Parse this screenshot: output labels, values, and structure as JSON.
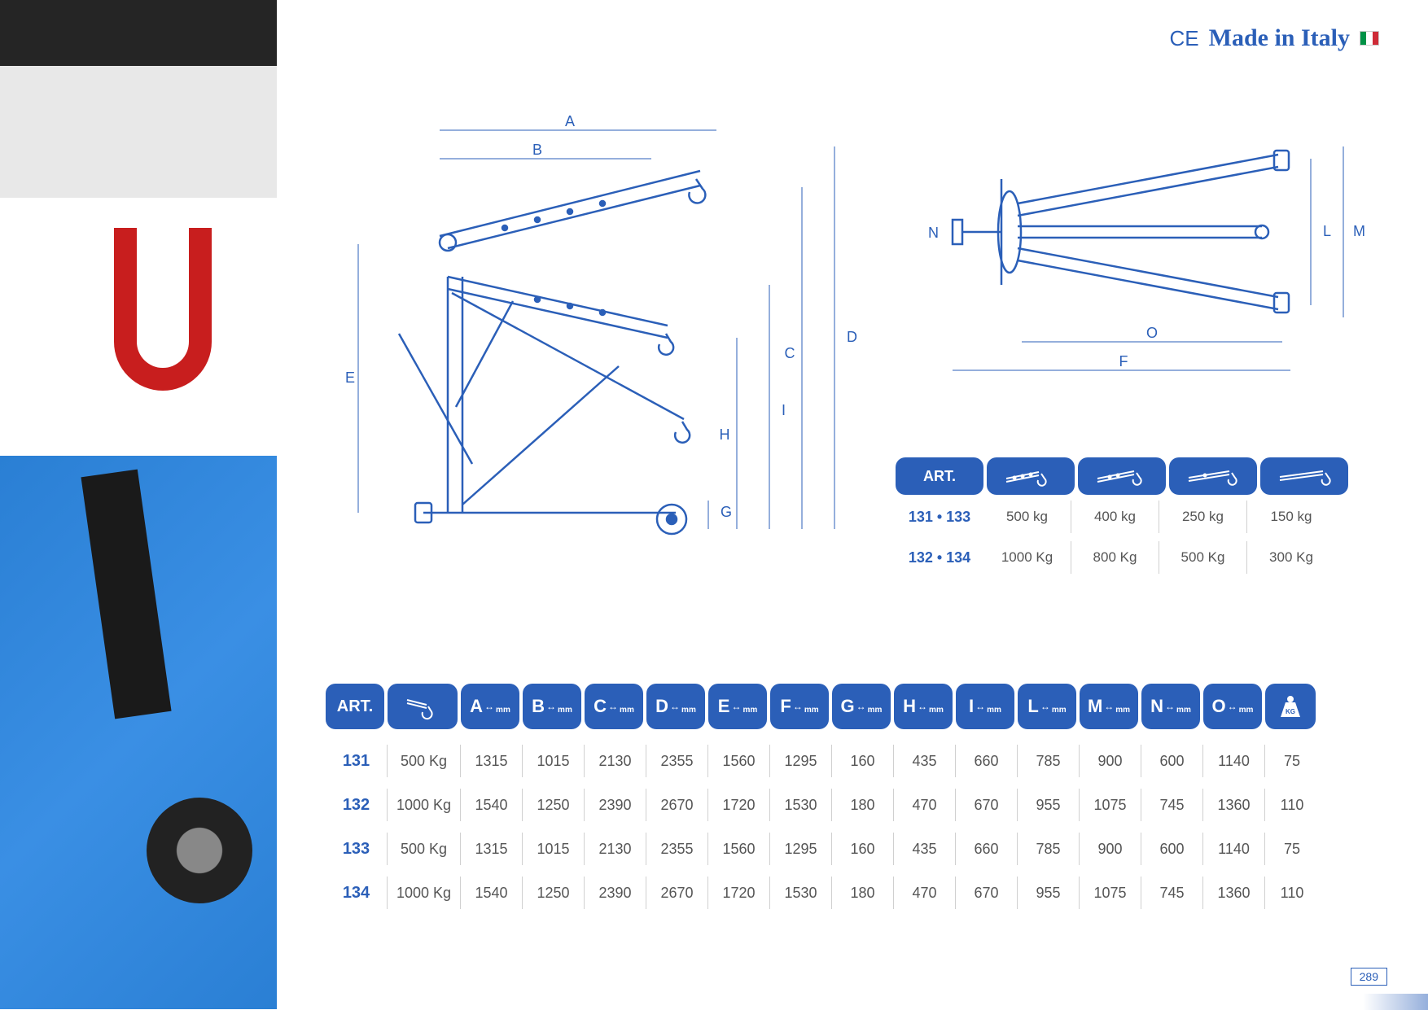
{
  "header": {
    "ce_mark": "CE",
    "made_in": "Made in Italy"
  },
  "diagram_side": {
    "labels": [
      "A",
      "B",
      "C",
      "D",
      "E",
      "G",
      "H",
      "I"
    ]
  },
  "diagram_top": {
    "labels": [
      "F",
      "L",
      "M",
      "N",
      "O"
    ]
  },
  "capacity_table": {
    "header": "ART.",
    "rows": [
      {
        "art": "131 • 133",
        "values": [
          "500 kg",
          "400 kg",
          "250 kg",
          "150 kg"
        ]
      },
      {
        "art": "132 • 134",
        "values": [
          "1000 Kg",
          "800 Kg",
          "500 Kg",
          "300 Kg"
        ]
      }
    ]
  },
  "main_table": {
    "header_art": "ART.",
    "dim_columns": [
      "A",
      "B",
      "C",
      "D",
      "E",
      "F",
      "G",
      "H",
      "I",
      "L",
      "M",
      "N",
      "O"
    ],
    "dim_unit": "mm",
    "rows": [
      {
        "art": "131",
        "cap": "500 Kg",
        "dims": [
          "1315",
          "1015",
          "2130",
          "2355",
          "1560",
          "1295",
          "160",
          "435",
          "660",
          "785",
          "900",
          "600",
          "1140"
        ],
        "kg": "75"
      },
      {
        "art": "132",
        "cap": "1000 Kg",
        "dims": [
          "1540",
          "1250",
          "2390",
          "2670",
          "1720",
          "1530",
          "180",
          "470",
          "670",
          "955",
          "1075",
          "745",
          "1360"
        ],
        "kg": "110"
      },
      {
        "art": "133",
        "cap": "500 Kg",
        "dims": [
          "1315",
          "1015",
          "2130",
          "2355",
          "1560",
          "1295",
          "160",
          "435",
          "660",
          "785",
          "900",
          "600",
          "1140"
        ],
        "kg": "75"
      },
      {
        "art": "134",
        "cap": "1000 Kg",
        "dims": [
          "1540",
          "1250",
          "2390",
          "2670",
          "1720",
          "1530",
          "180",
          "470",
          "670",
          "955",
          "1075",
          "745",
          "1360"
        ],
        "kg": "110"
      }
    ]
  },
  "page_number": "289",
  "colors": {
    "primary": "#2b5fb8",
    "text": "#555555",
    "divider": "#d0d0d0",
    "diagram_stroke": "#2b5fb8"
  }
}
